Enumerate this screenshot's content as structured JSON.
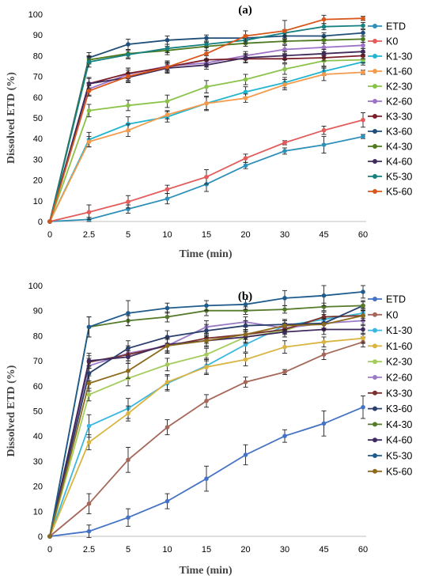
{
  "chart_data": [
    {
      "type": "line",
      "title": "(a)",
      "xlabel": "Time (min)",
      "ylabel": "Dissolved ETD (%)",
      "categories": [
        "0",
        "2.5",
        "5",
        "10",
        "15",
        "20",
        "30",
        "45",
        "60"
      ],
      "ylim": [
        0,
        100
      ],
      "yticks": [
        0,
        10,
        20,
        30,
        40,
        50,
        60,
        70,
        80,
        90,
        100
      ],
      "grid": false,
      "legend": "right",
      "series": [
        {
          "name": "ETD",
          "color": "#2E8FB8",
          "values": [
            0,
            1,
            6,
            11,
            18,
            27,
            34,
            37,
            41
          ],
          "err": [
            0,
            1,
            2,
            2.5,
            3.5,
            1.5,
            1.5,
            4,
            1
          ]
        },
        {
          "name": "K0",
          "color": "#E35C5C",
          "values": [
            0,
            4.5,
            9.5,
            15.5,
            21.5,
            30.5,
            38,
            44,
            49
          ],
          "err": [
            0,
            3.5,
            3,
            2,
            3.5,
            2,
            1,
            2,
            3.5
          ]
        },
        {
          "name": "K1-30",
          "color": "#22B5CF",
          "values": [
            0,
            39.5,
            47,
            50.5,
            57,
            62.5,
            67,
            72.5,
            77
          ],
          "err": [
            0,
            3.5,
            3.5,
            2.5,
            3,
            2.5,
            2.5,
            2,
            1.5
          ]
        },
        {
          "name": "K1-60",
          "color": "#F59A4C",
          "values": [
            0,
            38.5,
            44,
            51.5,
            57,
            59.5,
            66,
            71,
            72
          ],
          "err": [
            0,
            2.5,
            3,
            2,
            3.5,
            2,
            2.5,
            3,
            1
          ]
        },
        {
          "name": "K2-30",
          "color": "#8BC34A",
          "values": [
            0,
            53.5,
            56,
            58,
            65,
            68.5,
            73.5,
            77.5,
            78
          ],
          "err": [
            0,
            3,
            2.5,
            3,
            3,
            2.5,
            2.5,
            2.5,
            1.5
          ]
        },
        {
          "name": "K2-60",
          "color": "#9C72C8",
          "values": [
            0,
            64,
            71,
            75,
            76.5,
            80,
            83,
            84,
            85
          ],
          "err": [
            0,
            3,
            3,
            2,
            2,
            2,
            2,
            2,
            1.5
          ]
        },
        {
          "name": "K3-30",
          "color": "#7A1F2A",
          "values": [
            0,
            66.5,
            71.5,
            74.5,
            78,
            78.5,
            78.5,
            79,
            80
          ],
          "err": [
            0,
            3,
            2.5,
            2,
            2,
            2,
            2,
            1.5,
            1.5
          ]
        },
        {
          "name": "K3-60",
          "color": "#1F4E79",
          "values": [
            0,
            79,
            85.5,
            87.5,
            88.5,
            88.5,
            89.5,
            89.5,
            91
          ],
          "err": [
            0,
            2.5,
            2.5,
            2,
            1.5,
            1.5,
            1.5,
            1.5,
            1.5
          ]
        },
        {
          "name": "K4-30",
          "color": "#4E7A1F",
          "values": [
            0,
            78,
            81,
            82.5,
            84.5,
            86,
            87,
            87.5,
            88
          ],
          "err": [
            0,
            2,
            2,
            2,
            2,
            1.5,
            1.5,
            1.5,
            1.5
          ]
        },
        {
          "name": "K4-60",
          "color": "#3F2B5A",
          "values": [
            0,
            66.5,
            69.5,
            74,
            75.5,
            79,
            80,
            81,
            82
          ],
          "err": [
            0,
            2.5,
            2,
            2,
            2,
            2,
            2,
            2,
            1.5
          ]
        },
        {
          "name": "K5-30",
          "color": "#15807F",
          "values": [
            0,
            77,
            80.5,
            83.5,
            85.5,
            87.5,
            91,
            94,
            94.5
          ],
          "err": [
            0,
            2.5,
            2,
            2,
            1.5,
            1.5,
            1.5,
            1.5,
            1.5
          ]
        },
        {
          "name": "K5-60",
          "color": "#D8571C",
          "values": [
            0,
            63,
            70,
            74.5,
            81,
            89.5,
            92,
            97.5,
            98
          ],
          "err": [
            0,
            2.5,
            3,
            3,
            3,
            2.5,
            5,
            2,
            1
          ]
        }
      ]
    },
    {
      "type": "line",
      "title": "(b)",
      "xlabel": "Time (min)",
      "ylabel": "Dissolved ETD (%)",
      "categories": [
        "0",
        "2.5",
        "5",
        "10",
        "15",
        "20",
        "30",
        "45",
        "60"
      ],
      "ylim": [
        0,
        100
      ],
      "yticks": [
        0,
        10,
        20,
        30,
        40,
        50,
        60,
        70,
        80,
        90,
        100
      ],
      "grid": false,
      "legend": "right",
      "series": [
        {
          "name": "ETD",
          "color": "#4472C4",
          "values": [
            0,
            2,
            7.5,
            14,
            23,
            32.5,
            40,
            45,
            51.5
          ],
          "err": [
            0,
            2.5,
            3.5,
            3,
            5,
            4,
            2.5,
            5,
            4.5
          ]
        },
        {
          "name": "K0",
          "color": "#A5675A",
          "values": [
            0,
            13,
            30.5,
            43.5,
            54,
            61.5,
            65.5,
            72.5,
            77.5
          ],
          "err": [
            0,
            4,
            5,
            3,
            2.5,
            2,
            1,
            2,
            2
          ]
        },
        {
          "name": "K1-30",
          "color": "#3AB7E0",
          "values": [
            0,
            44,
            51,
            61,
            68,
            76.5,
            84,
            86.5,
            89
          ],
          "err": [
            0,
            4.5,
            4,
            3,
            3,
            3,
            2,
            2,
            2
          ]
        },
        {
          "name": "K1-60",
          "color": "#D9B441",
          "values": [
            0,
            37.5,
            49,
            61.5,
            67.5,
            70.5,
            75.5,
            77.5,
            79
          ],
          "err": [
            0,
            3,
            3,
            3,
            3,
            2.5,
            2.5,
            2,
            2
          ]
        },
        {
          "name": "K2-30",
          "color": "#A4CC5C",
          "values": [
            0,
            56.5,
            63,
            68.5,
            72.5,
            79.5,
            82,
            87.5,
            88
          ],
          "err": [
            0,
            2.5,
            3,
            2.5,
            2.5,
            2.5,
            2.5,
            2,
            2
          ]
        },
        {
          "name": "K2-60",
          "color": "#9B7BC7",
          "values": [
            0,
            68,
            73,
            76,
            83.5,
            85.5,
            83,
            85,
            86
          ],
          "err": [
            0,
            3,
            3,
            3,
            2.5,
            2,
            2,
            2,
            2
          ]
        },
        {
          "name": "K3-30",
          "color": "#7A2E2E",
          "values": [
            0,
            69.5,
            72.5,
            76,
            79,
            80.5,
            82.5,
            87.5,
            88
          ],
          "err": [
            0,
            2.5,
            2.5,
            2.5,
            2,
            2,
            2,
            2,
            2
          ]
        },
        {
          "name": "K3-60",
          "color": "#2B3F6C",
          "values": [
            0,
            65,
            75,
            79.5,
            82,
            84,
            84.5,
            85,
            92
          ],
          "err": [
            0,
            3,
            3,
            2.5,
            2.5,
            2,
            2,
            2,
            2
          ]
        },
        {
          "name": "K4-30",
          "color": "#557A2A",
          "values": [
            0,
            83.5,
            86,
            87.5,
            90,
            90,
            90.5,
            91.5,
            92
          ],
          "err": [
            0,
            4,
            2,
            2,
            2,
            1.5,
            1.5,
            1.5,
            1.5
          ]
        },
        {
          "name": "K4-60",
          "color": "#3F2A5E",
          "values": [
            0,
            70,
            71.5,
            76.5,
            78,
            79.5,
            81.5,
            82.5,
            82.5
          ],
          "err": [
            0,
            3,
            2.5,
            2.5,
            2,
            2,
            2,
            2,
            2
          ]
        },
        {
          "name": "K5-30",
          "color": "#1F5B8C",
          "values": [
            0,
            83.5,
            89,
            91,
            92,
            92.5,
            95,
            96,
            97.5
          ],
          "err": [
            0,
            4,
            5,
            2,
            2,
            2,
            3,
            4,
            2.5
          ]
        },
        {
          "name": "K5-60",
          "color": "#8C6A1C",
          "values": [
            0,
            61,
            66,
            76,
            78,
            80.5,
            84,
            84.5,
            88
          ],
          "err": [
            0,
            3,
            3,
            3,
            2.5,
            2,
            2,
            2,
            2
          ]
        }
      ]
    }
  ]
}
